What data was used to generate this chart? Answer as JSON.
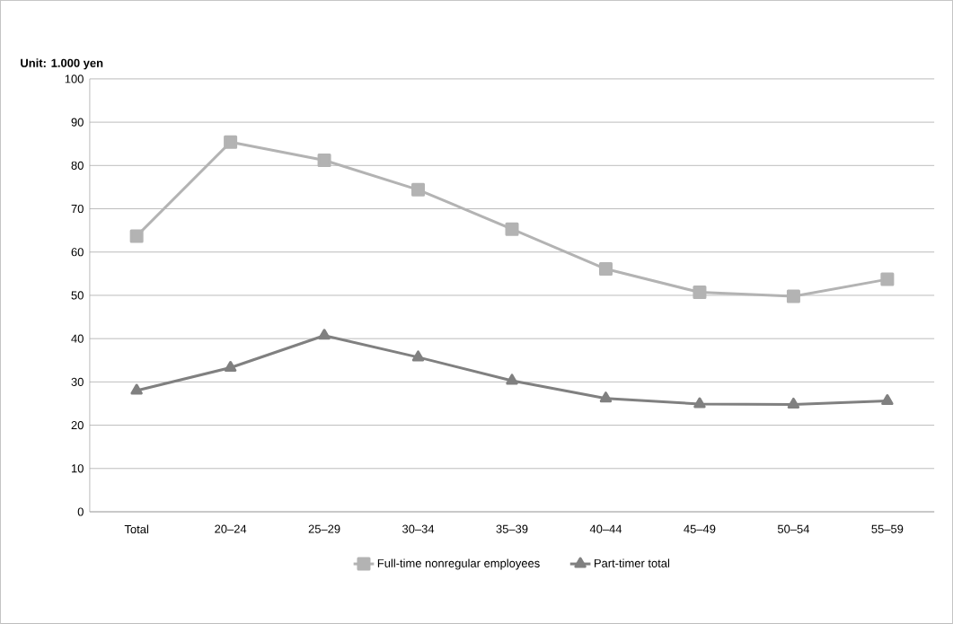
{
  "chart_data": {
    "type": "line",
    "ylabel": "Unit:  1.000 yen",
    "categories": [
      "Total",
      "20–24",
      "25–29",
      "30–34",
      "35–39",
      "40–44",
      "45–49",
      "50–54",
      "55–59"
    ],
    "series": [
      {
        "name": "Full-time nonregular employees",
        "color": "#b3b3b3",
        "marker": "square",
        "values": [
          63.7,
          85.4,
          81.2,
          74.4,
          65.3,
          56.1,
          50.7,
          49.8,
          53.7
        ]
      },
      {
        "name": "Part-timer total",
        "color": "#808080",
        "marker": "triangle",
        "values": [
          28,
          33.3,
          40.7,
          35.7,
          30.3,
          26.2,
          24.9,
          24.8,
          25.6
        ]
      }
    ],
    "ylim": [
      0,
      100
    ],
    "yticks": [
      0,
      10,
      20,
      30,
      40,
      50,
      60,
      70,
      80,
      90,
      100
    ],
    "grid": "y",
    "legend": "bottom",
    "line_style": "solid"
  }
}
